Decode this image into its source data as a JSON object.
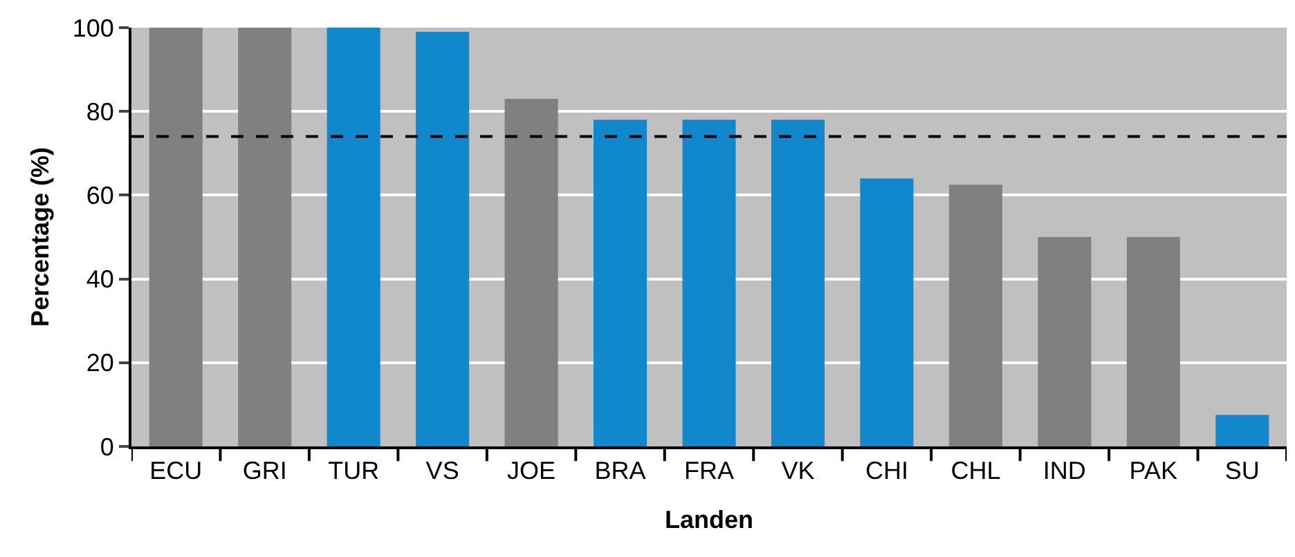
{
  "chart_data": {
    "type": "bar",
    "xlabel": "Landen",
    "ylabel": "Percentage (%)",
    "categories": [
      "ECU",
      "GRI",
      "TUR",
      "VS",
      "JOE",
      "BRA",
      "FRA",
      "VK",
      "CHI",
      "CHL",
      "IND",
      "PAK",
      "SU"
    ],
    "values": [
      100,
      100,
      100,
      99,
      83,
      78,
      78,
      78,
      64,
      62.5,
      50,
      50,
      7.5
    ],
    "colors": [
      "#808080",
      "#808080",
      "#1188cc",
      "#1188cc",
      "#808080",
      "#1188cc",
      "#1188cc",
      "#1188cc",
      "#1188cc",
      "#808080",
      "#808080",
      "#808080",
      "#1188cc"
    ],
    "ylim": [
      0,
      100
    ],
    "yticks": [
      0,
      20,
      40,
      60,
      80,
      100
    ],
    "grid": "y",
    "ref_lines": [
      {
        "axis": "y",
        "value": 74,
        "color": "#000000",
        "line_style": "dashed"
      }
    ]
  }
}
